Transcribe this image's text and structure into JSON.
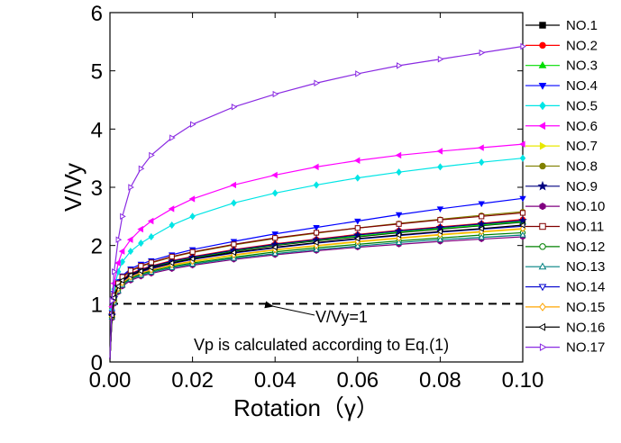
{
  "chart_data": {
    "type": "line",
    "title": "",
    "xlabel": "Rotation（γ）",
    "ylabel": "V/Vy",
    "xlim": [
      0,
      0.1
    ],
    "ylim": [
      0,
      6
    ],
    "x_ticks": [
      0.0,
      0.02,
      0.04,
      0.06,
      0.08,
      0.1
    ],
    "x_tick_labels": [
      "0.00",
      "0.02",
      "0.04",
      "0.06",
      "0.08",
      "0.10"
    ],
    "y_ticks": [
      0,
      1,
      2,
      3,
      4,
      5,
      6
    ],
    "y_tick_labels": [
      "0",
      "1",
      "2",
      "3",
      "4",
      "5",
      "6"
    ],
    "grid": false,
    "legend_position": "right",
    "x": [
      0.0,
      0.0005,
      0.001,
      0.002,
      0.003,
      0.005,
      0.0075,
      0.01,
      0.015,
      0.02,
      0.03,
      0.04,
      0.05,
      0.06,
      0.07,
      0.08,
      0.09,
      0.1
    ],
    "series": [
      {
        "name": "NO.1",
        "color": "#000000",
        "marker": "square-filled",
        "values": [
          0.05,
          0.8,
          1.1,
          1.3,
          1.4,
          1.5,
          1.57,
          1.62,
          1.71,
          1.78,
          1.9,
          2.0,
          2.08,
          2.15,
          2.22,
          2.28,
          2.34,
          2.4
        ]
      },
      {
        "name": "NO.2",
        "color": "#ff0000",
        "marker": "circle-filled",
        "values": [
          0.05,
          0.82,
          1.12,
          1.32,
          1.42,
          1.52,
          1.59,
          1.65,
          1.74,
          1.81,
          1.93,
          2.03,
          2.11,
          2.19,
          2.26,
          2.32,
          2.38,
          2.45
        ]
      },
      {
        "name": "NO.3",
        "color": "#00dd00",
        "marker": "triangle-up-filled",
        "values": [
          0.05,
          0.8,
          1.1,
          1.3,
          1.4,
          1.5,
          1.57,
          1.63,
          1.72,
          1.79,
          1.91,
          2.01,
          2.09,
          2.16,
          2.23,
          2.29,
          2.35,
          2.41
        ]
      },
      {
        "name": "NO.4",
        "color": "#0000ff",
        "marker": "triangle-down-filled",
        "values": [
          0.05,
          0.85,
          1.18,
          1.38,
          1.48,
          1.6,
          1.68,
          1.74,
          1.84,
          1.93,
          2.07,
          2.2,
          2.31,
          2.42,
          2.53,
          2.63,
          2.72,
          2.81
        ]
      },
      {
        "name": "NO.5",
        "color": "#00e5e5",
        "marker": "diamond-filled",
        "values": [
          0.05,
          0.9,
          1.25,
          1.55,
          1.72,
          1.9,
          2.04,
          2.15,
          2.35,
          2.5,
          2.73,
          2.9,
          3.04,
          3.16,
          3.26,
          3.35,
          3.43,
          3.5
        ]
      },
      {
        "name": "NO.6",
        "color": "#ff00ff",
        "marker": "triangle-left-filled",
        "values": [
          0.05,
          0.95,
          1.35,
          1.7,
          1.9,
          2.1,
          2.28,
          2.42,
          2.63,
          2.8,
          3.04,
          3.21,
          3.35,
          3.46,
          3.55,
          3.62,
          3.68,
          3.74
        ]
      },
      {
        "name": "NO.7",
        "color": "#e8e800",
        "marker": "triangle-right-filled",
        "values": [
          0.05,
          0.78,
          1.05,
          1.25,
          1.35,
          1.45,
          1.52,
          1.58,
          1.66,
          1.72,
          1.83,
          1.92,
          1.99,
          2.06,
          2.12,
          2.18,
          2.23,
          2.28
        ]
      },
      {
        "name": "NO.8",
        "color": "#808000",
        "marker": "circle-filled",
        "values": [
          0.05,
          0.82,
          1.13,
          1.34,
          1.45,
          1.56,
          1.64,
          1.7,
          1.8,
          1.88,
          2.01,
          2.12,
          2.21,
          2.3,
          2.38,
          2.45,
          2.52,
          2.58
        ]
      },
      {
        "name": "NO.9",
        "color": "#000080",
        "marker": "star-filled",
        "values": [
          0.05,
          0.8,
          1.1,
          1.3,
          1.4,
          1.51,
          1.58,
          1.64,
          1.73,
          1.8,
          1.92,
          2.02,
          2.1,
          2.18,
          2.25,
          2.31,
          2.37,
          2.43
        ]
      },
      {
        "name": "NO.10",
        "color": "#800080",
        "marker": "hexagon-filled",
        "values": [
          0.05,
          0.75,
          1.0,
          1.2,
          1.3,
          1.4,
          1.47,
          1.52,
          1.6,
          1.66,
          1.76,
          1.84,
          1.91,
          1.97,
          2.02,
          2.07,
          2.11,
          2.15
        ]
      },
      {
        "name": "NO.11",
        "color": "#800000",
        "marker": "square-open",
        "values": [
          0.05,
          0.82,
          1.14,
          1.35,
          1.46,
          1.57,
          1.65,
          1.71,
          1.81,
          1.89,
          2.02,
          2.13,
          2.22,
          2.3,
          2.37,
          2.44,
          2.5,
          2.56
        ]
      },
      {
        "name": "NO.12",
        "color": "#008000",
        "marker": "circle-open",
        "values": [
          0.05,
          0.78,
          1.04,
          1.24,
          1.34,
          1.44,
          1.51,
          1.56,
          1.64,
          1.7,
          1.8,
          1.89,
          1.96,
          2.02,
          2.08,
          2.13,
          2.18,
          2.22
        ]
      },
      {
        "name": "NO.13",
        "color": "#008080",
        "marker": "triangle-up-open",
        "values": [
          0.05,
          0.77,
          1.02,
          1.22,
          1.32,
          1.42,
          1.49,
          1.54,
          1.62,
          1.68,
          1.78,
          1.86,
          1.93,
          1.99,
          2.05,
          2.1,
          2.14,
          2.18
        ]
      },
      {
        "name": "NO.14",
        "color": "#0000cd",
        "marker": "triangle-down-open",
        "values": [
          0.05,
          0.79,
          1.08,
          1.28,
          1.38,
          1.48,
          1.55,
          1.6,
          1.69,
          1.76,
          1.87,
          1.96,
          2.04,
          2.11,
          2.17,
          2.23,
          2.28,
          2.33
        ]
      },
      {
        "name": "NO.15",
        "color": "#ffa500",
        "marker": "diamond-open",
        "values": [
          0.05,
          0.78,
          1.06,
          1.26,
          1.36,
          1.46,
          1.53,
          1.58,
          1.67,
          1.73,
          1.84,
          1.93,
          2.0,
          2.07,
          2.13,
          2.19,
          2.24,
          2.29
        ]
      },
      {
        "name": "NO.16",
        "color": "#000000",
        "marker": "triangle-left-open",
        "values": [
          0.05,
          0.8,
          1.1,
          1.3,
          1.4,
          1.49,
          1.56,
          1.62,
          1.7,
          1.77,
          1.88,
          1.97,
          2.05,
          2.12,
          2.18,
          2.24,
          2.29,
          2.35
        ]
      },
      {
        "name": "NO.17",
        "color": "#8a2be2",
        "marker": "triangle-right-open",
        "values": [
          0.05,
          1.05,
          1.55,
          2.1,
          2.5,
          3.0,
          3.32,
          3.55,
          3.85,
          4.08,
          4.38,
          4.6,
          4.79,
          4.95,
          5.09,
          5.2,
          5.31,
          5.42
        ]
      }
    ],
    "reference_line": {
      "y": 1,
      "style": "dashed",
      "label": "V/Vy=1"
    },
    "annotations": [
      {
        "text": "V/Vy=1"
      },
      {
        "text": "Vp is calculated according to Eq.(1)"
      }
    ]
  }
}
